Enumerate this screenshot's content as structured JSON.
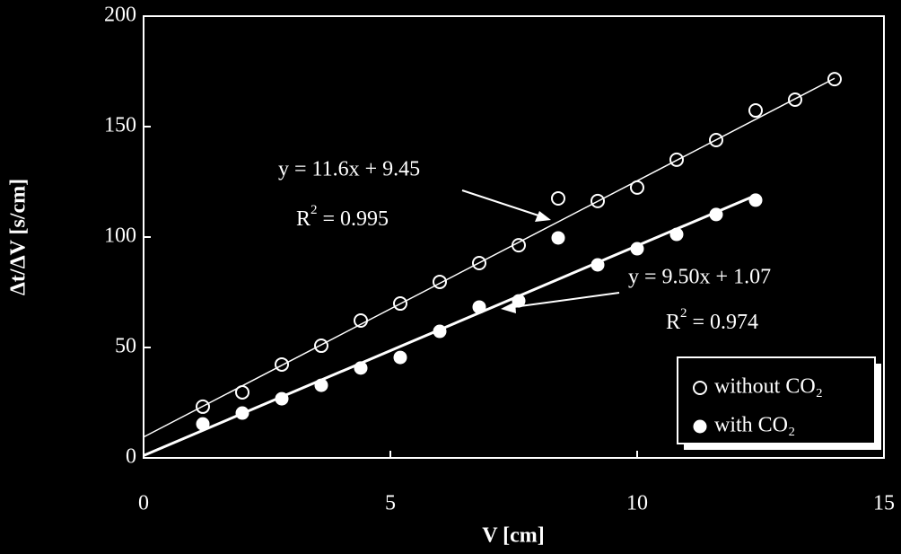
{
  "chart_data": {
    "type": "scatter",
    "x_label": "V  [cm]",
    "y_label": "Δt/ΔV  [s/cm]",
    "xlim": [
      0,
      15
    ],
    "xticks": [
      0,
      5,
      10,
      15
    ],
    "ylim": [
      0,
      200
    ],
    "yticks": [
      0,
      50,
      100,
      150,
      200
    ],
    "grid": false,
    "legend": "lower right",
    "series": [
      {
        "name": "without CO₂",
        "marker": "open",
        "color": "#ffffff",
        "x": [
          1.2,
          2.0,
          2.8,
          3.6,
          4.4,
          5.2,
          6.0,
          6.8,
          7.6,
          8.4,
          9.2,
          10.0,
          10.8,
          11.6,
          12.4,
          13.2,
          14.0
        ],
        "values": [
          23.2,
          29.7,
          42.3,
          50.8,
          62.2,
          69.9,
          79.7,
          88.2,
          96.3,
          117.5,
          116.3,
          122.4,
          135,
          143.9,
          157.3,
          162.2,
          171.5
        ],
        "trendline": {
          "slope": 11.6,
          "intercept": 9.45,
          "equation": "y = 11.6x + 9.45",
          "r2": {
            "symbol": "R",
            "sup": "2",
            "rest": " = 0.995"
          }
        }
      },
      {
        "name": "with CO₂",
        "marker": "filled",
        "color": "#ffffff",
        "x": [
          1.2,
          2.0,
          2.8,
          3.6,
          4.4,
          5.2,
          6.0,
          6.8,
          7.6,
          8.4,
          9.2,
          10.0,
          10.8,
          11.6,
          12.4
        ],
        "values": [
          15.4,
          20.3,
          26.8,
          32.9,
          40.7,
          45.5,
          57.3,
          68.3,
          71.1,
          99.6,
          87.4,
          94.7,
          101.2,
          110.2,
          116.7
        ],
        "trendline": {
          "slope": 9.5,
          "intercept": 1.07,
          "equation": "y = 9.50x + 1.07",
          "r2": {
            "symbol": "R",
            "sup": "2",
            "rest": " = 0.974"
          }
        }
      }
    ]
  }
}
